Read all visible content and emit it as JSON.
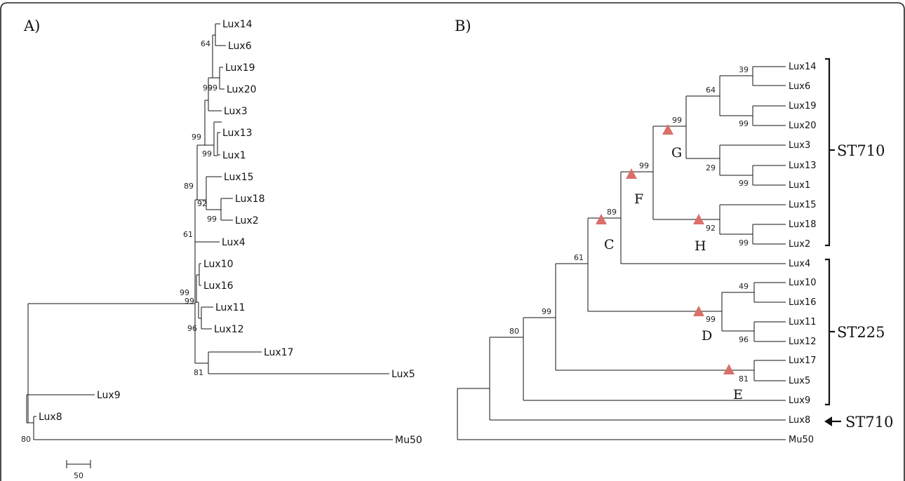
{
  "panel_a": {
    "label": "A)",
    "scale_label": "50",
    "leaves": [
      "Lux14",
      "Lux6",
      "Lux19",
      "Lux20",
      "Lux3",
      "Lux13",
      "Lux1",
      "Lux15",
      "Lux18",
      "Lux2",
      "Lux4",
      "Lux10",
      "Lux16",
      "Lux11",
      "Lux12",
      "Lux17",
      "Lux5",
      "Lux9",
      "Lux8",
      "Mu50"
    ],
    "bootstrap": [
      "64",
      "99",
      "99",
      "99",
      "99",
      "89",
      "92",
      "99",
      "61",
      "99",
      "99",
      "96",
      "81",
      "80"
    ]
  },
  "panel_b": {
    "label": "B)",
    "leaves": [
      "Lux14",
      "Lux6",
      "Lux19",
      "Lux20",
      "Lux3",
      "Lux13",
      "Lux1",
      "Lux15",
      "Lux18",
      "Lux2",
      "Lux4",
      "Lux10",
      "Lux16",
      "Lux11",
      "Lux12",
      "Lux17",
      "Lux5",
      "Lux9",
      "Lux8",
      "Mu50"
    ],
    "bootstrap": [
      "39",
      "64",
      "99",
      "99",
      "29",
      "99",
      "99",
      "92",
      "99",
      "89",
      "61",
      "49",
      "99",
      "96",
      "99",
      "81",
      "80"
    ],
    "clade_labels": [
      "G",
      "F",
      "C",
      "H",
      "D",
      "E"
    ],
    "groups": [
      "ST710",
      "ST225",
      "ST710"
    ],
    "marker_color": "#d9706a"
  }
}
